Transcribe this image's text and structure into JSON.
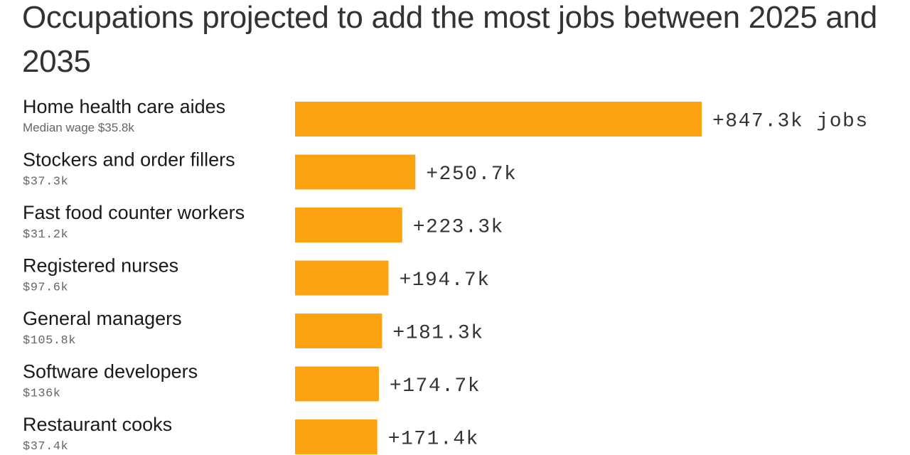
{
  "chart_data": {
    "type": "bar",
    "orientation": "horizontal",
    "title": "Occupations projected to add the most jobs between 2025 and 2035",
    "categories": [
      "Home health care aides",
      "Stockers and order fillers",
      "Fast food counter workers",
      "Registered nurses",
      "General managers",
      "Software developers",
      "Restaurant cooks"
    ],
    "sublabels": [
      "Median wage $35.8k",
      "$37.3k",
      "$31.2k",
      "$97.6k",
      "$105.8k",
      "$136k",
      "$37.4k"
    ],
    "values": [
      847.3,
      250.7,
      223.3,
      194.7,
      181.3,
      174.7,
      171.4
    ],
    "value_labels": [
      "+847.3k jobs",
      "+250.7k",
      "+223.3k",
      "+194.7k",
      "+181.3k",
      "+174.7k",
      "+171.4k"
    ],
    "bar_color": "#fca311",
    "xlim": [
      0,
      847.3
    ],
    "grid": false,
    "legend": "none"
  }
}
